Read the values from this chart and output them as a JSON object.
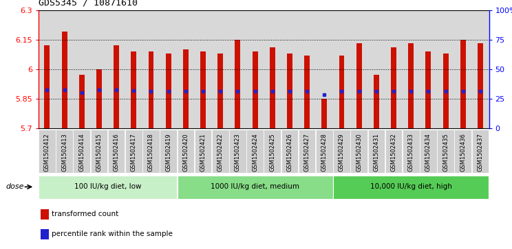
{
  "title": "GDS5345 / 10871610",
  "samples": [
    "GSM1502412",
    "GSM1502413",
    "GSM1502414",
    "GSM1502415",
    "GSM1502416",
    "GSM1502417",
    "GSM1502418",
    "GSM1502419",
    "GSM1502420",
    "GSM1502421",
    "GSM1502422",
    "GSM1502423",
    "GSM1502424",
    "GSM1502425",
    "GSM1502426",
    "GSM1502427",
    "GSM1502428",
    "GSM1502429",
    "GSM1502430",
    "GSM1502431",
    "GSM1502432",
    "GSM1502433",
    "GSM1502434",
    "GSM1502435",
    "GSM1502436",
    "GSM1502437"
  ],
  "bar_heights": [
    6.12,
    6.19,
    5.97,
    6.0,
    6.12,
    6.09,
    6.09,
    6.08,
    6.1,
    6.09,
    6.08,
    6.148,
    6.09,
    6.11,
    6.08,
    6.07,
    5.848,
    6.07,
    6.13,
    5.97,
    6.11,
    6.13,
    6.09,
    6.08,
    6.15,
    6.13
  ],
  "blue_dot_y": [
    5.895,
    5.895,
    5.882,
    5.895,
    5.895,
    5.89,
    5.888,
    5.888,
    5.888,
    5.888,
    5.888,
    5.888,
    5.888,
    5.888,
    5.888,
    5.888,
    5.872,
    5.888,
    5.888,
    5.888,
    5.888,
    5.888,
    5.888,
    5.888,
    5.888,
    5.888
  ],
  "ymin": 5.7,
  "ymax": 6.3,
  "yticks": [
    5.7,
    5.85,
    6.0,
    6.15,
    6.3
  ],
  "ytick_labels": [
    "5.7",
    "5.85",
    "6",
    "6.15",
    "6.3"
  ],
  "y2ticks": [
    0,
    25,
    50,
    75,
    100
  ],
  "y2tick_labels": [
    "0",
    "25",
    "50",
    "75",
    "100%"
  ],
  "gridlines": [
    5.85,
    6.0,
    6.15
  ],
  "bar_color": "#cc1100",
  "blue_dot_color": "#2222cc",
  "col_bg_color": "#d8d8d8",
  "plot_bg": "#ffffff",
  "groups": [
    {
      "label": "100 IU/kg diet, low",
      "start": 0,
      "end": 8,
      "color": "#c8f0c8"
    },
    {
      "label": "1000 IU/kg diet, medium",
      "start": 8,
      "end": 17,
      "color": "#88dd88"
    },
    {
      "label": "10,000 IU/kg diet, high",
      "start": 17,
      "end": 26,
      "color": "#55cc55"
    }
  ],
  "dose_label": "dose",
  "legend_items": [
    {
      "label": "transformed count",
      "color": "#cc1100"
    },
    {
      "label": "percentile rank within the sample",
      "color": "#2222cc"
    }
  ]
}
